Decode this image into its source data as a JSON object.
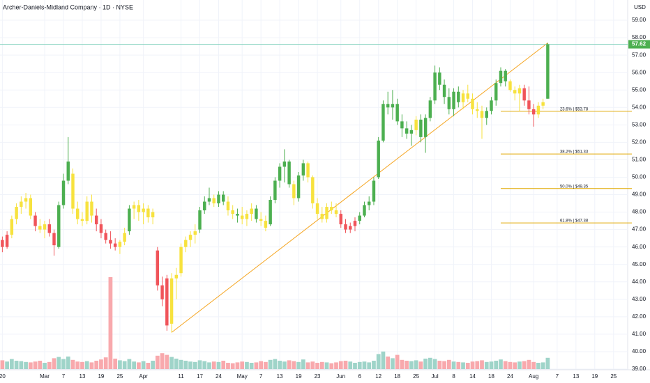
{
  "chart_data": {
    "type": "candlestick",
    "title": "Archer-Daniels-Midland Company · 1D · NYSE",
    "currency": "USD",
    "palette": {
      "u": "#4caf50",
      "d": "#f0545a",
      "n": "#f7e23e"
    },
    "volume_colors": {
      "up": "#9fd4c9",
      "down": "#f8a9ad"
    },
    "grid": true,
    "xlim": [
      -0.5,
      133
    ],
    "ylim": [
      39,
      59.96
    ],
    "xticks": [
      {
        "value": 0,
        "label": "20"
      },
      {
        "value": 9,
        "label": "Mar"
      },
      {
        "value": 13,
        "label": "7"
      },
      {
        "value": 17,
        "label": "13"
      },
      {
        "value": 21,
        "label": "19"
      },
      {
        "value": 25,
        "label": "25"
      },
      {
        "value": 30,
        "label": "Apr"
      },
      {
        "value": 38,
        "label": "11"
      },
      {
        "value": 42,
        "label": "17"
      },
      {
        "value": 46,
        "label": "24"
      },
      {
        "value": 51,
        "label": "May"
      },
      {
        "value": 55,
        "label": "7"
      },
      {
        "value": 59,
        "label": "13"
      },
      {
        "value": 63,
        "label": "19"
      },
      {
        "value": 67,
        "label": "23"
      },
      {
        "value": 72,
        "label": "Jun"
      },
      {
        "value": 76,
        "label": "6"
      },
      {
        "value": 80,
        "label": "12"
      },
      {
        "value": 84,
        "label": "18"
      },
      {
        "value": 88,
        "label": "25"
      },
      {
        "value": 92,
        "label": "Jul"
      },
      {
        "value": 96,
        "label": "8"
      },
      {
        "value": 100,
        "label": "14"
      },
      {
        "value": 104,
        "label": "18"
      },
      {
        "value": 108,
        "label": "24"
      },
      {
        "value": 113,
        "label": "Aug"
      },
      {
        "value": 118,
        "label": "7"
      },
      {
        "value": 122,
        "label": "13"
      },
      {
        "value": 126,
        "label": "19"
      },
      {
        "value": 130,
        "label": "25"
      }
    ],
    "yticks": [
      {
        "value": 39,
        "label": "39.00"
      },
      {
        "value": 40,
        "label": "40.00"
      },
      {
        "value": 41,
        "label": "41.00"
      },
      {
        "value": 42,
        "label": "42.00"
      },
      {
        "value": 43,
        "label": "43.00"
      },
      {
        "value": 44,
        "label": "44.00"
      },
      {
        "value": 45,
        "label": "45.00"
      },
      {
        "value": 46,
        "label": "46.00"
      },
      {
        "value": 47,
        "label": "47.00"
      },
      {
        "value": 48,
        "label": "48.00"
      },
      {
        "value": 49,
        "label": "49.00"
      },
      {
        "value": 50,
        "label": "50.00"
      },
      {
        "value": 51,
        "label": "51.00"
      },
      {
        "value": 52,
        "label": "52.00"
      },
      {
        "value": 53,
        "label": "53.00"
      },
      {
        "value": 54,
        "label": "54.00"
      },
      {
        "value": 55,
        "label": "55.00"
      },
      {
        "value": 56,
        "label": "56.00"
      },
      {
        "value": 57,
        "label": "57.00"
      },
      {
        "value": 58,
        "label": "58.00"
      },
      {
        "value": 59,
        "label": "59.00"
      }
    ],
    "open": [
      46.4,
      46.0,
      46.7,
      47.6,
      48.3,
      48.6,
      48.8,
      47.8,
      47.2,
      47.0,
      47.3,
      46.8,
      46.0,
      48.4,
      49.8,
      50.2,
      48.2,
      47.6,
      47.5,
      48.6,
      47.8,
      47.3,
      46.8,
      46.4,
      46.2,
      46.0,
      46.3,
      46.9,
      48.2,
      48.4,
      48.0,
      48.2,
      47.7,
      45.8,
      43.8,
      44.2,
      41.6,
      44.2,
      44.5,
      46.0,
      46.4,
      46.7,
      47.0,
      48.1,
      48.6,
      48.8,
      48.5,
      49.0,
      48.6,
      48.1,
      47.9,
      47.8,
      47.6,
      47.9,
      48.2,
      47.6,
      47.5,
      47.3,
      48.7,
      49.8,
      50.6,
      50.9,
      49.6,
      48.8,
      50.1,
      50.8,
      50.0,
      48.5,
      47.9,
      47.6,
      48.3,
      48.1,
      47.9,
      47.3,
      47.0,
      47.2,
      47.5,
      47.8,
      48.4,
      48.6,
      50.0,
      52.1,
      54.2,
      54.0,
      54.2,
      53.2,
      52.8,
      52.5,
      52.7,
      53.3,
      52.3,
      53.4,
      54.4,
      56.0,
      55.3,
      54.6,
      53.9,
      54.9,
      54.3,
      54.8,
      54.5,
      53.9,
      53.8,
      53.4,
      53.8,
      54.4,
      55.4,
      56.1,
      55.5,
      55.0,
      54.8,
      55.1,
      54.4,
      53.9,
      53.6,
      54.1,
      54.5
    ],
    "high": [
      46.6,
      46.9,
      47.8,
      48.5,
      48.9,
      49.1,
      49.0,
      48.0,
      47.6,
      47.5,
      47.6,
      47.0,
      48.6,
      50.2,
      52.3,
      50.5,
      48.6,
      48.0,
      48.9,
      49.0,
      48.2,
      47.6,
      47.0,
      46.9,
      46.5,
      46.4,
      47.1,
      48.4,
      48.6,
      48.7,
      48.5,
      48.4,
      48.2,
      46.0,
      44.3,
      44.4,
      44.5,
      44.8,
      46.2,
      46.6,
      46.9,
      47.3,
      48.3,
      48.9,
      49.4,
      49.0,
      49.2,
      49.2,
      48.9,
      48.4,
      48.2,
      48.3,
      48.1,
      48.5,
      48.4,
      48.0,
      47.8,
      48.9,
      50.0,
      50.8,
      51.6,
      51.0,
      49.8,
      50.3,
      51.0,
      50.9,
      50.1,
      48.8,
      48.3,
      48.5,
      48.6,
      48.5,
      48.1,
      47.6,
      47.4,
      47.7,
      48.0,
      48.6,
      48.9,
      50.0,
      52.3,
      54.4,
      54.9,
      55.0,
      54.5,
      53.6,
      53.2,
      53.0,
      53.5,
      53.6,
      53.6,
      54.6,
      56.4,
      56.3,
      55.6,
      55.1,
      55.1,
      55.2,
      55.0,
      55.3,
      54.8,
      54.3,
      54.1,
      54.0,
      54.6,
      55.6,
      56.3,
      56.2,
      55.6,
      55.2,
      55.3,
      55.3,
      55.2,
      54.2,
      54.3,
      54.5,
      57.7
    ],
    "low": [
      45.7,
      45.9,
      46.5,
      47.3,
      47.9,
      48.2,
      47.6,
      46.9,
      46.8,
      46.5,
      46.6,
      45.5,
      45.9,
      48.2,
      49.6,
      47.9,
      47.3,
      47.2,
      47.3,
      47.4,
      46.9,
      46.5,
      46.2,
      45.9,
      45.8,
      45.6,
      46.1,
      46.7,
      47.6,
      47.5,
      47.3,
      47.4,
      47.3,
      43.5,
      42.6,
      41.2,
      41.1,
      43.0,
      44.3,
      45.7,
      46.0,
      46.2,
      46.8,
      47.9,
      48.4,
      48.3,
      48.3,
      48.4,
      47.8,
      47.6,
      47.4,
      47.3,
      47.2,
      47.5,
      47.4,
      47.2,
      46.9,
      47.2,
      48.5,
      49.4,
      49.7,
      49.4,
      48.4,
      48.6,
      49.8,
      49.7,
      48.2,
      47.6,
      47.4,
      47.4,
      47.9,
      47.7,
      47.1,
      46.8,
      46.8,
      46.9,
      47.3,
      47.7,
      48.1,
      48.4,
      49.9,
      52.0,
      53.6,
      53.3,
      53.0,
      52.3,
      52.2,
      51.8,
      52.4,
      52.0,
      51.4,
      53.2,
      54.2,
      55.0,
      54.2,
      53.6,
      53.5,
      54.0,
      53.9,
      54.3,
      53.6,
      53.4,
      52.2,
      53.0,
      53.6,
      54.1,
      55.2,
      55.2,
      54.9,
      54.4,
      53.8,
      54.1,
      53.6,
      52.9,
      53.4,
      53.9,
      54.5
    ],
    "close": [
      46.0,
      46.7,
      47.6,
      48.3,
      48.6,
      48.8,
      47.8,
      47.2,
      47.0,
      47.3,
      46.8,
      46.1,
      48.4,
      49.8,
      50.9,
      48.2,
      47.6,
      47.5,
      48.6,
      47.8,
      47.3,
      46.8,
      46.4,
      46.2,
      46.0,
      46.3,
      46.8,
      48.2,
      48.4,
      48.0,
      48.2,
      47.7,
      48.0,
      43.8,
      43.0,
      41.5,
      44.2,
      44.4,
      46.0,
      46.4,
      46.7,
      46.9,
      48.1,
      48.6,
      48.8,
      48.5,
      49.0,
      48.6,
      48.1,
      47.9,
      47.8,
      47.6,
      47.9,
      48.2,
      47.6,
      47.5,
      47.1,
      48.7,
      49.8,
      50.6,
      50.9,
      49.6,
      48.8,
      50.1,
      50.8,
      50.0,
      48.5,
      47.9,
      47.6,
      48.3,
      48.1,
      47.9,
      47.3,
      47.0,
      47.2,
      47.5,
      47.8,
      48.4,
      48.6,
      49.8,
      52.1,
      54.2,
      54.0,
      54.2,
      53.2,
      52.8,
      52.5,
      52.7,
      53.3,
      52.3,
      53.4,
      54.4,
      56.0,
      55.3,
      54.6,
      53.9,
      54.9,
      54.3,
      54.8,
      54.5,
      53.9,
      53.8,
      53.4,
      53.8,
      54.4,
      55.4,
      56.1,
      55.5,
      55.0,
      54.8,
      55.1,
      54.4,
      53.9,
      53.6,
      54.1,
      54.3,
      57.62
    ],
    "kinds": [
      "d",
      "d",
      "n",
      "n",
      "n",
      "n",
      "n",
      "d",
      "n",
      "n",
      "d",
      "d",
      "u",
      "u",
      "u",
      "n",
      "n",
      "n",
      "n",
      "n",
      "d",
      "d",
      "d",
      "d",
      "d",
      "n",
      "n",
      "u",
      "n",
      "n",
      "n",
      "n",
      "n",
      "d",
      "d",
      "d",
      "n",
      "n",
      "n",
      "n",
      "n",
      "n",
      "u",
      "u",
      "u",
      "n",
      "u",
      "u",
      "n",
      "n",
      "u",
      "n",
      "n",
      "n",
      "u",
      "n",
      "n",
      "u",
      "u",
      "u",
      "u",
      "u",
      "n",
      "u",
      "u",
      "n",
      "n",
      "n",
      "n",
      "n",
      "n",
      "n",
      "d",
      "d",
      "d",
      "d",
      "u",
      "u",
      "u",
      "u",
      "u",
      "u",
      "u",
      "u",
      "u",
      "u",
      "u",
      "u",
      "n",
      "u",
      "u",
      "u",
      "u",
      "u",
      "u",
      "u",
      "u",
      "u",
      "n",
      "n",
      "n",
      "n",
      "n",
      "u",
      "u",
      "u",
      "u",
      "u",
      "n",
      "n",
      "n",
      "d",
      "d",
      "d",
      "n",
      "n",
      "u"
    ],
    "volume": [
      2.1,
      1.8,
      2.4,
      2.0,
      1.9,
      1.7,
      1.6,
      1.8,
      2.0,
      1.5,
      1.7,
      2.6,
      2.9,
      2.4,
      3.0,
      2.2,
      1.8,
      1.7,
      1.9,
      1.6,
      2.0,
      2.3,
      2.8,
      22.0,
      2.5,
      2.1,
      1.9,
      2.4,
      1.8,
      1.6,
      1.9,
      1.5,
      2.0,
      3.2,
      3.8,
      3.4,
      2.9,
      2.5,
      2.2,
      2.0,
      1.8,
      1.7,
      2.1,
      1.9,
      1.6,
      1.8,
      1.7,
      2.0,
      1.5,
      1.4,
      1.6,
      1.8,
      1.7,
      1.5,
      1.6,
      1.9,
      1.7,
      2.2,
      2.4,
      2.0,
      1.8,
      2.1,
      1.9,
      1.7,
      2.3,
      1.6,
      1.8,
      1.5,
      1.7,
      1.6,
      1.4,
      1.6,
      1.9,
      2.0,
      1.8,
      1.5,
      1.7,
      1.8,
      1.6,
      2.0,
      3.6,
      4.2,
      3.0,
      2.6,
      3.4,
      2.2,
      2.0,
      1.9,
      2.1,
      1.8,
      2.5,
      2.7,
      2.4,
      2.0,
      1.9,
      2.2,
      1.8,
      1.7,
      1.6,
      1.5,
      1.8,
      1.9,
      2.1,
      1.7,
      1.8,
      2.0,
      2.3,
      1.9,
      1.7,
      1.6,
      1.8,
      1.9,
      2.2,
      1.7,
      1.5,
      1.6,
      2.7
    ],
    "last_price": 57.62,
    "trendline": {
      "x": [
        36,
        116
      ],
      "y": [
        41.1,
        57.7
      ],
      "color": "#f5a623"
    },
    "fib_start": 106,
    "fib_levels": [
      {
        "label": "23.6% | $53.78",
        "value": 53.78
      },
      {
        "label": "38.2% | $51.33",
        "value": 51.33
      },
      {
        "label": "50.0% | $49.35",
        "value": 49.35
      },
      {
        "label": "61.8% | $47.38",
        "value": 47.38
      }
    ]
  }
}
